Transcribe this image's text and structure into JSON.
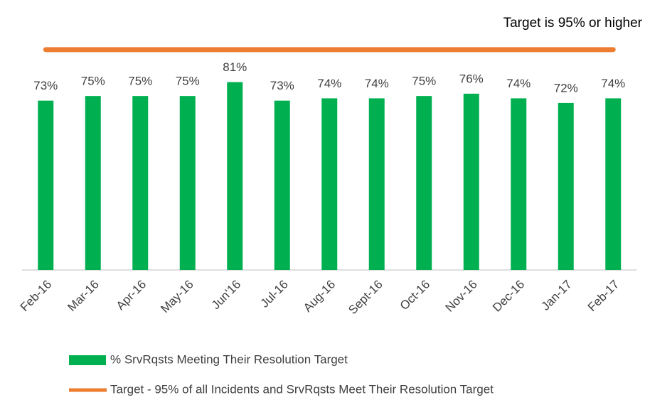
{
  "chart_data": {
    "type": "bar",
    "annotation": "Target is 95% or higher",
    "categories": [
      "Feb-16",
      "Mar-16",
      "Apr-16",
      "May-16",
      "Jun'16",
      "Jul-16",
      "Aug-16",
      "Sept-16",
      "Oct-16",
      "Nov-16",
      "Dec-16",
      "Jan-17",
      "Feb-17"
    ],
    "series": [
      {
        "name": "% SrvRqsts Meeting Their Resolution Target",
        "type": "bar",
        "color": "#00b050",
        "values": [
          73,
          75,
          75,
          75,
          81,
          73,
          74,
          74,
          75,
          76,
          74,
          72,
          74
        ],
        "value_labels": [
          "73%",
          "75%",
          "75%",
          "75%",
          "81%",
          "73%",
          "74%",
          "74%",
          "75%",
          "76%",
          "74%",
          "72%",
          "74%"
        ]
      },
      {
        "name": "Target - 95% of all Incidents and SrvRqsts Meet Their Resolution Target",
        "type": "line",
        "color": "#ed7d31",
        "values": [
          95,
          95,
          95,
          95,
          95,
          95,
          95,
          95,
          95,
          95,
          95,
          95,
          95
        ]
      }
    ],
    "ylim": [
      0,
      100
    ]
  }
}
